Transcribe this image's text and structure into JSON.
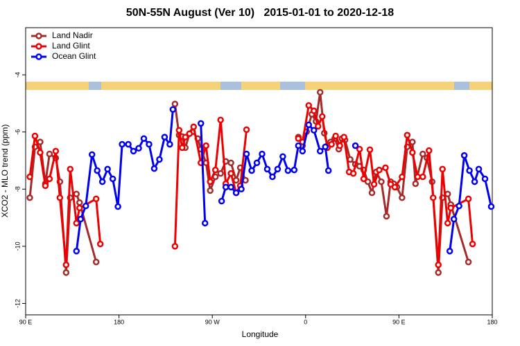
{
  "chart_data": {
    "type": "line",
    "title": "50N-55N August (Ver 10)   2015-01-01 to 2020-12-18",
    "x_label": "Longitude",
    "y_label": "XCO2 - MLO trend (ppm)",
    "xlim": [
      90,
      540
    ],
    "ylim": [
      -12.4,
      -2.35
    ],
    "xticks": [
      {
        "value": 90,
        "label": "90 E"
      },
      {
        "value": 180,
        "label": "180"
      },
      {
        "value": 270,
        "label": "90 W"
      },
      {
        "value": 360,
        "label": "0"
      },
      {
        "value": 450,
        "label": "90 E"
      },
      {
        "value": 540,
        "label": "180"
      }
    ],
    "yticks": [
      -4,
      -6,
      -8,
      -10,
      -12
    ],
    "legend": "upper left",
    "series": [
      {
        "name": "Land Nadir",
        "color": "#a52a2a",
        "x": [
          94,
          99,
          104,
          109,
          113,
          119,
          123,
          129,
          133,
          139,
          142,
          158,
          null,
          234,
          238,
          241,
          244,
          248,
          251,
          256,
          259,
          264,
          268,
          273,
          278,
          283,
          288,
          293,
          297,
          302,
          null,
          353,
          357,
          361,
          366,
          370,
          374,
          378,
          381,
          384,
          388,
          392,
          395,
          398,
          403,
          408,
          412,
          416,
          420,
          424,
          428,
          433,
          438,
          442,
          445,
          448,
          453,
          458,
          463,
          466,
          473,
          477,
          482,
          488,
          492,
          497,
          500,
          517
        ],
        "values": [
          -8.3,
          -6.52,
          -6.35,
          -7.81,
          -6.77,
          -6.91,
          -7.74,
          -10.92,
          -8.3,
          -8.17,
          -8.47,
          -10.55,
          null,
          -5.02,
          -6.11,
          -6.16,
          -6.55,
          -6.06,
          -5.99,
          -6.23,
          -6.6,
          -7.08,
          -8.05,
          -7.57,
          -7.45,
          -7.03,
          -7.08,
          -7.69,
          -7.25,
          -7.69,
          null,
          -6.18,
          -6.48,
          -5.99,
          -5.38,
          -5.63,
          -4.61,
          -6.04,
          -6.48,
          -6.35,
          -6.23,
          -6.6,
          -6.23,
          -6.28,
          -6.96,
          -7.13,
          -7.2,
          -7.33,
          -7.74,
          -8.13,
          -7.4,
          -7.74,
          -8.95,
          -7.74,
          -7.81,
          -7.93,
          -8.3,
          -6.52,
          -6.35,
          -7.81,
          -6.77,
          -6.91,
          -7.74,
          -10.92,
          -8.3,
          -8.17,
          -8.54,
          -10.55
        ]
      },
      {
        "name": "Land Glint",
        "color": "#ee0000",
        "x": [
          94,
          99,
          104,
          109,
          113,
          119,
          123,
          129,
          133,
          139,
          142,
          158,
          162,
          null,
          234,
          238,
          241,
          244,
          248,
          252,
          259,
          264,
          268,
          273,
          278,
          283,
          288,
          293,
          297,
          303,
          null,
          353,
          357,
          363,
          368,
          372,
          376,
          381,
          385,
          389,
          393,
          397,
          402,
          406,
          412,
          416,
          422,
          426,
          431,
          437,
          442,
          446,
          453,
          458,
          463,
          468,
          473,
          479,
          483,
          488,
          492,
          497,
          500,
          517,
          521
        ],
        "values": [
          -7.57,
          -6.14,
          -6.72,
          -7.88,
          -7.64,
          -6.67,
          -8.3,
          -10.65,
          -7.3,
          -9.19,
          -8.66,
          -8.34,
          -9.92,
          null,
          -10.0,
          -5.94,
          -6.55,
          -6.18,
          -6.06,
          -5.82,
          -7.08,
          -6.48,
          -7.74,
          -7.33,
          -5.58,
          -7.81,
          -7.45,
          -8.13,
          -7.88,
          -5.92,
          null,
          -6.23,
          -6.35,
          -5.07,
          -5.26,
          -5.8,
          -5.46,
          -6.55,
          -6.43,
          -6.14,
          -6.48,
          -6.18,
          -7.4,
          -7.45,
          -6.6,
          -7.64,
          -6.62,
          -7.83,
          -7.33,
          -7.25,
          -7.83,
          -7.93,
          -7.57,
          -6.11,
          -6.72,
          -7.57,
          -7.57,
          -6.65,
          -8.3,
          -10.65,
          -7.3,
          -9.19,
          -8.66,
          -8.34,
          -9.92
        ]
      },
      {
        "name": "Ocean Glint",
        "color": "#0000ee",
        "x": [
          139,
          143,
          148,
          154,
          159,
          164,
          169,
          174,
          179,
          183,
          189,
          194,
          199,
          204,
          209,
          214,
          219,
          224,
          229,
          232,
          null,
          259,
          263,
          null,
          279,
          283,
          288,
          293,
          298,
          303,
          308,
          313,
          318,
          323,
          328,
          333,
          338,
          343,
          349,
          353,
          357,
          363,
          368,
          374,
          379,
          382,
          null,
          408,
          null,
          499,
          503,
          508,
          513,
          518,
          523,
          527,
          533,
          539
        ],
        "values": [
          -10.17,
          -9.05,
          -8.59,
          -6.79,
          -7.35,
          -7.74,
          -7.3,
          -7.64,
          -8.61,
          -6.43,
          -6.43,
          -6.67,
          -6.57,
          -6.23,
          -6.43,
          -7.28,
          -6.96,
          -6.18,
          -6.43,
          -5.21,
          null,
          -5.7,
          -9.19,
          null,
          -8.42,
          -7.93,
          -7.93,
          -8.13,
          -8.0,
          -6.77,
          -7.35,
          -7.08,
          -6.77,
          -7.3,
          -7.57,
          -7.3,
          -6.86,
          -7.35,
          -7.33,
          -6.48,
          -6.67,
          -5.75,
          -5.94,
          -6.67,
          -6.52,
          -7.35,
          null,
          -6.48,
          null,
          -10.17,
          -9.05,
          -8.59,
          -6.82,
          -7.35,
          -7.74,
          -7.3,
          -7.64,
          -8.61
        ]
      }
    ]
  }
}
